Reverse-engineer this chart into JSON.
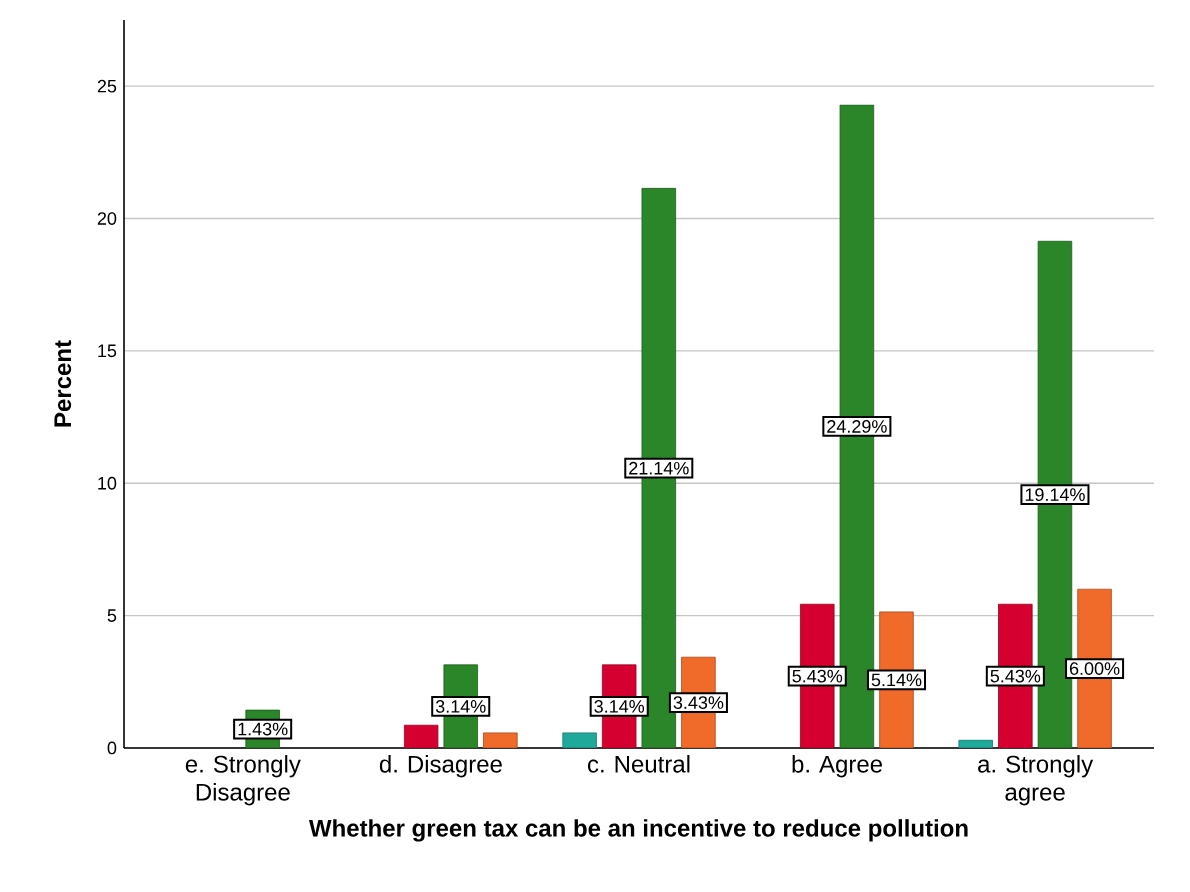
{
  "chart_data": {
    "type": "bar",
    "xlabel": "Whether green tax can be an incentive to reduce pollution",
    "ylabel": "Percent",
    "categories": [
      "e. Strongly Disagree",
      "d. Disagree",
      "c. Neutral",
      "b. Agree",
      "a. Strongly agree"
    ],
    "series": [
      {
        "color": "#1fa99a",
        "values": [
          null,
          null,
          0.57,
          null,
          0.29
        ]
      },
      {
        "color": "#d5002f",
        "values": [
          null,
          0.86,
          3.14,
          5.43,
          5.43
        ],
        "value_labels": [
          null,
          null,
          "3.14%",
          "5.43%",
          "5.43%"
        ]
      },
      {
        "color": "#2a8629",
        "values": [
          1.43,
          3.14,
          21.14,
          24.29,
          19.14
        ],
        "value_labels": [
          "1.43%",
          "3.14%",
          "21.14%",
          "24.29%",
          "19.14%"
        ]
      },
      {
        "color": "#f06a2a",
        "values": [
          null,
          0.57,
          3.43,
          5.14,
          6.0
        ],
        "value_labels": [
          null,
          null,
          "3.43%",
          "5.14%",
          "6.00%"
        ]
      }
    ],
    "ylim": [
      0,
      27.5
    ],
    "yticks": [
      0,
      5,
      10,
      15,
      20,
      25
    ],
    "grid": "y"
  }
}
